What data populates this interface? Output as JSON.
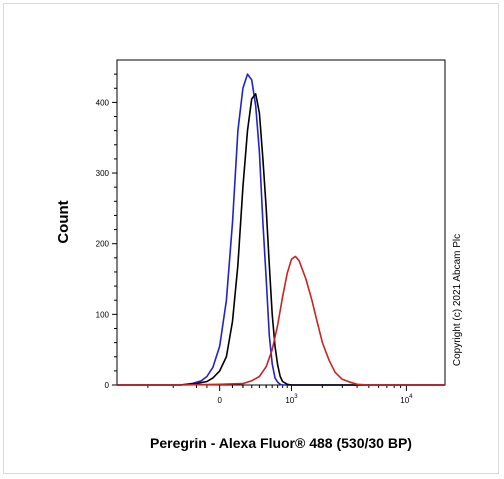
{
  "chart_data": {
    "type": "line",
    "title": "",
    "xlabel": "Peregrin - Alexa Fluor® 488 (530/30 BP)",
    "ylabel": "Count",
    "xscale": "biexponential",
    "ylim": [
      0,
      460
    ],
    "yticks": [
      0,
      100,
      200,
      300,
      400
    ],
    "xticks": [
      {
        "base": "0",
        "exp": ""
      },
      {
        "base": "10",
        "exp": "3"
      },
      {
        "base": "10",
        "exp": "4"
      }
    ],
    "grid": false,
    "legend": "none",
    "annotation": "Copyright (c) 2021 Abcam Plc",
    "series": [
      {
        "color": "#2222cc",
        "x": [
          -400,
          -250,
          -150,
          -100,
          -50,
          0,
          50,
          100,
          150,
          200,
          250,
          300,
          350,
          400,
          450,
          500,
          550,
          600,
          650,
          700,
          750,
          800,
          850
        ],
        "y": [
          0,
          2,
          6,
          12,
          25,
          55,
          120,
          230,
          360,
          420,
          440,
          432,
          395,
          330,
          230,
          150,
          70,
          30,
          10,
          4,
          1,
          0,
          0
        ]
      },
      {
        "color": "#000000",
        "x": [
          -400,
          -200,
          -100,
          -50,
          0,
          50,
          100,
          150,
          200,
          250,
          300,
          350,
          400,
          450,
          500,
          550,
          600,
          650,
          700,
          750,
          800,
          900,
          1000
        ],
        "y": [
          0,
          2,
          5,
          10,
          20,
          40,
          90,
          170,
          280,
          360,
          405,
          412,
          385,
          320,
          250,
          170,
          100,
          55,
          28,
          12,
          5,
          1,
          0
        ]
      },
      {
        "color": "#cc2222",
        "x": [
          -400,
          0,
          200,
          300,
          400,
          500,
          600,
          700,
          800,
          900,
          1000,
          1100,
          1200,
          1400,
          1600,
          1800,
          2000,
          2300,
          2600,
          3000,
          3500,
          4000,
          5000
        ],
        "y": [
          0,
          1,
          2,
          6,
          12,
          26,
          50,
          85,
          125,
          158,
          178,
          182,
          176,
          150,
          120,
          88,
          60,
          35,
          18,
          8,
          4,
          1,
          0
        ]
      }
    ]
  }
}
